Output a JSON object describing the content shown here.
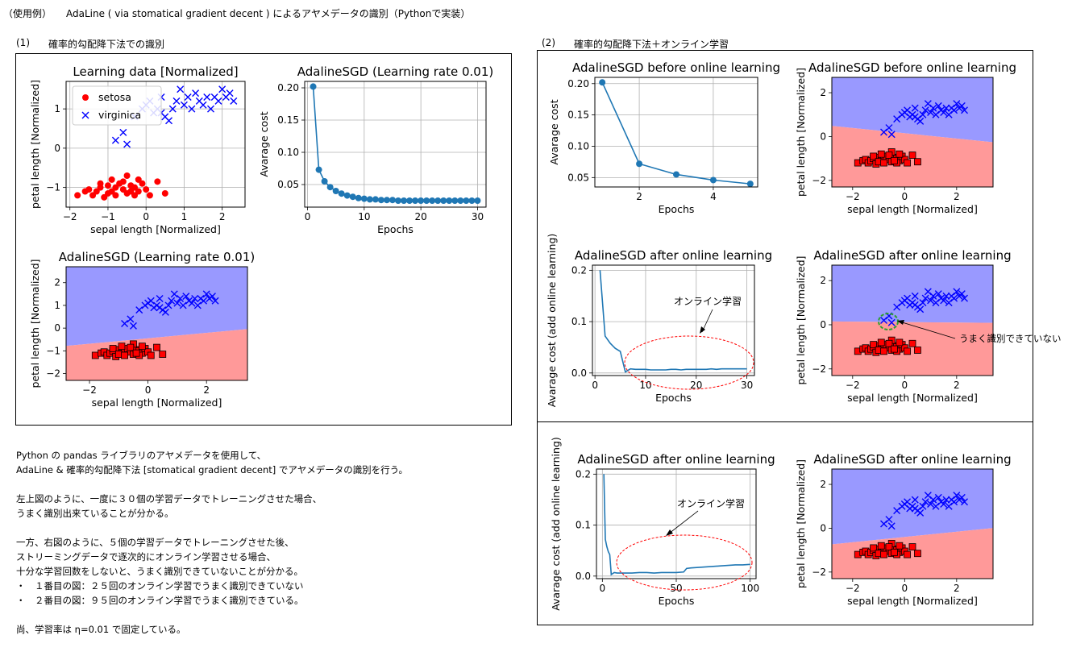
{
  "header": {
    "usage": "（使用例）",
    "title": "AdaLine ( via stomatical gradient decent ) によるアヤメデータの識別（Pythonで実装）"
  },
  "section1": {
    "num": "(1)",
    "label": "確率的勾配降下法での識別"
  },
  "section2": {
    "num": "(2)",
    "label": "確率的勾配降下法＋オンライン学習"
  },
  "description": {
    "lines": [
      "Python の pandas ライブラリのアヤメデータを使用して、",
      "AdaLine & 確率的勾配降下法 [stomatical gradient decent] でアヤメデータの識別を行う。",
      "",
      "左上図のように、一度に３０個の学習データでトレーニングさせた場合、",
      "うまく識別出来ていることが分かる。",
      "",
      "一方、右図のように、５個の学習データでトレーニングさせた後、",
      "ストリーミングデータで逐次的にオンライン学習させる場合、",
      "十分な学習回数をしないと、うまく識別できていないことが分かる。",
      "・　１番目の図：２５回のオンライン学習でうまく識別できていない",
      "・　２番目の図：９５回のオンライン学習でうまく識別できている。",
      "",
      "尚、学習率は η=0.01 で固定している。"
    ]
  },
  "annotations": {
    "online_label": "オンライン学習",
    "misclassified_label": "うまく識別できていない"
  },
  "colors": {
    "setosa": "#ff0000",
    "virginica": "#0000ff",
    "region_blue": "#9999ff",
    "region_red": "#ff9999",
    "line": "#1f77b4",
    "highlight_ellipse": "#ff0000",
    "misclass_circle": "#2ca02c"
  },
  "chart_data": [
    {
      "id": "c1",
      "type": "scatter",
      "title": "Learning data [Normalized]",
      "xlabel": "sepal length [Normalized]",
      "ylabel": "petal length [Normalized]",
      "xlim": [
        -2.1,
        2.6
      ],
      "ylim": [
        -1.5,
        1.7
      ],
      "xticks": [
        -2,
        -1,
        0,
        1,
        2
      ],
      "yticks": [
        -1,
        0,
        1
      ],
      "grid": true,
      "legend": "upper left",
      "series": [
        {
          "name": "setosa",
          "marker": "circle",
          "points": [
            [
              -1.8,
              -1.2
            ],
            [
              -1.6,
              -1.1
            ],
            [
              -1.5,
              -1.05
            ],
            [
              -1.4,
              -1.2
            ],
            [
              -1.3,
              -1.1
            ],
            [
              -1.2,
              -1.0
            ],
            [
              -1.1,
              -1.25
            ],
            [
              -1.0,
              -0.95
            ],
            [
              -0.9,
              -1.1
            ],
            [
              -0.8,
              -1.0
            ],
            [
              -0.7,
              -0.9
            ],
            [
              -0.6,
              -1.05
            ],
            [
              -0.5,
              -1.15
            ],
            [
              -0.4,
              -0.95
            ],
            [
              -0.3,
              -1.0
            ],
            [
              -0.2,
              -1.1
            ],
            [
              -0.1,
              -0.9
            ],
            [
              0.0,
              -1.05
            ],
            [
              0.3,
              -0.85
            ],
            [
              0.5,
              -1.15
            ],
            [
              -0.5,
              -0.7
            ],
            [
              -0.9,
              -0.8
            ],
            [
              -1.2,
              -0.9
            ],
            [
              -0.3,
              -1.2
            ],
            [
              -0.6,
              -0.85
            ],
            [
              -1.0,
              -1.15
            ],
            [
              0.1,
              -1.2
            ],
            [
              -0.2,
              -0.8
            ],
            [
              -0.8,
              -1.2
            ],
            [
              -0.4,
              -1.1
            ]
          ]
        },
        {
          "name": "virginica",
          "marker": "x",
          "points": [
            [
              -0.8,
              0.2
            ],
            [
              -0.6,
              0.4
            ],
            [
              -0.5,
              0.1
            ],
            [
              -0.3,
              0.8
            ],
            [
              -0.1,
              1.0
            ],
            [
              0.0,
              1.1
            ],
            [
              0.1,
              1.2
            ],
            [
              0.2,
              0.9
            ],
            [
              0.3,
              1.0
            ],
            [
              0.4,
              1.3
            ],
            [
              0.5,
              0.8
            ],
            [
              0.6,
              0.7
            ],
            [
              0.7,
              1.0
            ],
            [
              0.8,
              1.2
            ],
            [
              0.9,
              1.5
            ],
            [
              1.0,
              1.1
            ],
            [
              1.1,
              1.3
            ],
            [
              1.2,
              1.0
            ],
            [
              1.3,
              1.4
            ],
            [
              1.4,
              1.2
            ],
            [
              1.5,
              1.1
            ],
            [
              1.6,
              1.3
            ],
            [
              1.7,
              1.0
            ],
            [
              1.8,
              1.3
            ],
            [
              1.9,
              1.2
            ],
            [
              2.0,
              1.5
            ],
            [
              2.1,
              1.3
            ],
            [
              2.2,
              1.4
            ],
            [
              2.3,
              1.2
            ],
            [
              0.4,
              0.9
            ]
          ]
        }
      ]
    },
    {
      "id": "c2",
      "type": "line",
      "title": "AdalineSGD (Learning rate 0.01)",
      "xlabel": "Epochs",
      "ylabel": "Avarage cost",
      "xlim": [
        -0.5,
        31.5
      ],
      "ylim": [
        0.015,
        0.21
      ],
      "xticks": [
        0,
        10,
        20,
        30
      ],
      "yticks": [
        0.05,
        0.1,
        0.15,
        0.2
      ],
      "grid": true,
      "x": [
        1,
        2,
        3,
        4,
        5,
        6,
        7,
        8,
        9,
        10,
        11,
        12,
        13,
        14,
        15,
        16,
        17,
        18,
        19,
        20,
        21,
        22,
        23,
        24,
        25,
        26,
        27,
        28,
        29,
        30
      ],
      "values": [
        0.202,
        0.073,
        0.055,
        0.046,
        0.04,
        0.036,
        0.033,
        0.031,
        0.029,
        0.028,
        0.027,
        0.027,
        0.026,
        0.026,
        0.026,
        0.025,
        0.025,
        0.025,
        0.025,
        0.025,
        0.025,
        0.025,
        0.025,
        0.025,
        0.025,
        0.025,
        0.025,
        0.025,
        0.025,
        0.025
      ],
      "markers": true
    },
    {
      "id": "c3",
      "type": "scatter",
      "title": "AdalineSGD (Learning rate 0.01)",
      "xlabel": "sepal length [Normalized]",
      "ylabel": "petal length [Normalized]",
      "xlim": [
        -2.8,
        3.4
      ],
      "ylim": [
        -2.3,
        2.7
      ],
      "xticks": [
        -2,
        0,
        2
      ],
      "yticks": [
        -2,
        -1,
        0,
        1,
        2
      ],
      "boundary": [
        -0.45,
        0.12
      ],
      "series_ref": "c1"
    },
    {
      "id": "c4",
      "type": "line",
      "title": "AdalineSGD before online learning",
      "xlabel": "Epochs",
      "ylabel": "Avarage cost",
      "xlim": [
        0.8,
        5.2
      ],
      "ylim": [
        0.035,
        0.21
      ],
      "xticks": [
        2,
        4
      ],
      "yticks": [
        0.05,
        0.1,
        0.15,
        0.2
      ],
      "grid": true,
      "x": [
        1,
        2,
        3,
        4,
        5
      ],
      "values": [
        0.202,
        0.072,
        0.055,
        0.046,
        0.04
      ],
      "markers": true
    },
    {
      "id": "c5",
      "type": "scatter",
      "title": "AdalineSGD before online learning",
      "xlabel": "sepal length [Normalized]",
      "ylabel": "petal length [Normalized]",
      "xlim": [
        -2.8,
        3.4
      ],
      "ylim": [
        -2.3,
        2.7
      ],
      "xticks": [
        -2,
        0,
        2
      ],
      "yticks": [
        -2,
        0,
        2
      ],
      "boundary": [
        0.15,
        -0.12
      ],
      "series_ref": "c1"
    },
    {
      "id": "c6",
      "type": "line",
      "title": "AdalineSGD after online learning",
      "xlabel": "Epochs",
      "ylabel": "Avarage cost (add online learning)",
      "xlim": [
        -0.5,
        31.5
      ],
      "ylim": [
        -0.005,
        0.21
      ],
      "xticks": [
        0,
        10,
        20,
        30
      ],
      "yticks": [
        0.0,
        0.1,
        0.2
      ],
      "grid": true,
      "x": [
        1,
        2,
        3,
        4,
        5,
        6,
        7,
        8,
        9,
        10,
        11,
        12,
        13,
        14,
        15,
        16,
        17,
        18,
        19,
        20,
        21,
        22,
        23,
        24,
        25,
        26,
        27,
        28,
        29,
        30
      ],
      "values": [
        0.2,
        0.072,
        0.058,
        0.048,
        0.042,
        0.002,
        0.008,
        0.007,
        0.007,
        0.007,
        0.006,
        0.006,
        0.006,
        0.006,
        0.007,
        0.007,
        0.006,
        0.007,
        0.007,
        0.007,
        0.007,
        0.007,
        0.008,
        0.007,
        0.008,
        0.008,
        0.008,
        0.008,
        0.008,
        0.008
      ],
      "markers": false
    },
    {
      "id": "c7",
      "type": "scatter",
      "title": "AdalineSGD after online learning",
      "xlabel": "sepal length [Normalized]",
      "ylabel": "petal length [Normalized]",
      "xlim": [
        -2.8,
        3.4
      ],
      "ylim": [
        -2.3,
        2.7
      ],
      "xticks": [
        -2,
        0,
        2
      ],
      "yticks": [
        -2,
        0,
        2
      ],
      "boundary": [
        0.12,
        -0.01
      ],
      "series_ref": "c1"
    },
    {
      "id": "c8",
      "type": "line",
      "title": "AdalineSGD after online learning",
      "xlabel": "Epochs",
      "ylabel": "Avarage cost (add online learning)",
      "xlim": [
        -4,
        104
      ],
      "ylim": [
        -0.005,
        0.21
      ],
      "xticks": [
        0,
        50,
        100
      ],
      "yticks": [
        0.0,
        0.1,
        0.2
      ],
      "grid": true,
      "x": [
        1,
        2,
        3,
        4,
        5,
        6,
        8,
        10,
        15,
        20,
        25,
        30,
        35,
        40,
        45,
        50,
        55,
        57,
        60,
        65,
        70,
        75,
        80,
        85,
        90,
        95,
        100
      ],
      "values": [
        0.2,
        0.072,
        0.058,
        0.048,
        0.042,
        0.003,
        0.007,
        0.006,
        0.006,
        0.006,
        0.007,
        0.007,
        0.006,
        0.007,
        0.007,
        0.007,
        0.008,
        0.015,
        0.016,
        0.017,
        0.018,
        0.019,
        0.02,
        0.021,
        0.022,
        0.022,
        0.023
      ],
      "markers": false
    },
    {
      "id": "c9",
      "type": "scatter",
      "title": "AdalineSGD after online learning",
      "xlabel": "sepal length [Normalized]",
      "ylabel": "petal length [Normalized]",
      "xlim": [
        -2.8,
        3.4
      ],
      "ylim": [
        -2.3,
        2.7
      ],
      "xticks": [
        -2,
        0,
        2
      ],
      "yticks": [
        -2,
        0,
        2
      ],
      "boundary": [
        -0.4,
        0.12
      ],
      "series_ref": "c1"
    }
  ]
}
